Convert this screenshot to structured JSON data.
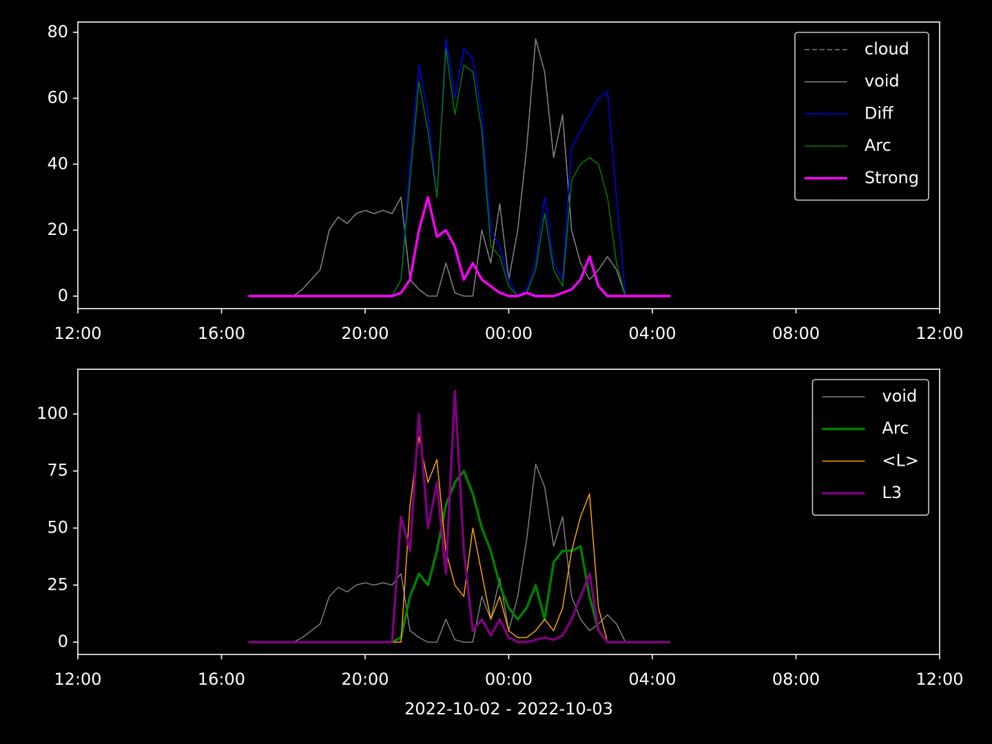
{
  "chart_data": [
    {
      "type": "line",
      "x": [
        16.75,
        17,
        17.25,
        17.5,
        17.75,
        18,
        18.25,
        18.5,
        18.75,
        19,
        19.25,
        19.5,
        19.75,
        20,
        20.25,
        20.5,
        20.75,
        21,
        21.25,
        21.5,
        21.75,
        22,
        22.25,
        22.5,
        22.75,
        23,
        23.25,
        23.5,
        23.75,
        24,
        24.25,
        24.5,
        24.75,
        25,
        25.25,
        25.5,
        25.75,
        26,
        26.25,
        26.5,
        26.75,
        27,
        27.25,
        27.5,
        27.75,
        28,
        28.25,
        28.5
      ],
      "xlim": [
        12,
        36
      ],
      "xticks": [
        {
          "value": 12,
          "label": "12:00"
        },
        {
          "value": 16,
          "label": "16:00"
        },
        {
          "value": 20,
          "label": "20:00"
        },
        {
          "value": 24,
          "label": "00:00"
        },
        {
          "value": 28,
          "label": "04:00"
        },
        {
          "value": 32,
          "label": "08:00"
        },
        {
          "value": 36,
          "label": "12:00"
        }
      ],
      "ylim": [
        -3.8,
        83.1
      ],
      "yticks": [
        0,
        20,
        40,
        60,
        80
      ],
      "legend": "upper right",
      "series": [
        {
          "name": "cloud",
          "color": "#808080",
          "linewidth": 1.5,
          "dash": "dashed",
          "values": [
            0,
            0,
            0,
            0,
            0,
            0,
            2,
            5,
            8,
            20,
            24,
            22,
            25,
            26,
            25,
            26,
            25,
            30,
            5,
            2,
            0,
            0,
            10,
            1,
            0,
            0,
            20,
            10,
            28,
            5,
            20,
            45,
            78,
            68,
            42,
            55,
            20,
            10,
            5,
            8,
            12,
            8,
            0,
            0,
            0,
            0,
            0,
            0
          ]
        },
        {
          "name": "void",
          "color": "#808080",
          "linewidth": 1.5,
          "values": [
            0,
            0,
            0,
            0,
            0,
            0,
            2,
            5,
            8,
            20,
            24,
            22,
            25,
            26,
            25,
            26,
            25,
            30,
            5,
            2,
            0,
            0,
            10,
            1,
            0,
            0,
            20,
            10,
            28,
            5,
            20,
            45,
            78,
            68,
            42,
            55,
            20,
            10,
            5,
            8,
            12,
            8,
            0,
            0,
            0,
            0,
            0,
            0
          ]
        },
        {
          "name": "Diff",
          "color": "#0000ff",
          "linewidth": 1.5,
          "values": [
            0,
            0,
            0,
            0,
            0,
            0,
            0,
            0,
            0,
            0,
            0,
            0,
            0,
            0,
            0,
            0,
            0,
            5,
            40,
            70,
            55,
            30,
            78,
            60,
            75,
            72,
            55,
            20,
            15,
            5,
            0,
            2,
            10,
            30,
            10,
            5,
            45,
            50,
            55,
            60,
            62,
            30,
            0,
            0,
            0,
            0,
            0,
            0
          ]
        },
        {
          "name": "Arc",
          "color": "#008000",
          "linewidth": 1.5,
          "values": [
            0,
            0,
            0,
            0,
            0,
            0,
            0,
            0,
            0,
            0,
            0,
            0,
            0,
            0,
            0,
            0,
            0,
            5,
            35,
            65,
            50,
            30,
            75,
            55,
            70,
            68,
            50,
            15,
            12,
            3,
            0,
            1,
            8,
            25,
            8,
            3,
            35,
            40,
            42,
            40,
            30,
            10,
            0,
            0,
            0,
            0,
            0,
            0
          ]
        },
        {
          "name": "Strong",
          "color": "#ff00ff",
          "linewidth": 3.5,
          "values": [
            0,
            0,
            0,
            0,
            0,
            0,
            0,
            0,
            0,
            0,
            0,
            0,
            0,
            0,
            0,
            0,
            0,
            1,
            5,
            20,
            30,
            18,
            20,
            15,
            5,
            10,
            5,
            3,
            1,
            0,
            0,
            1,
            0,
            0,
            0,
            1,
            2,
            5,
            12,
            3,
            0,
            0,
            0,
            0,
            0,
            0,
            0,
            0
          ]
        }
      ]
    },
    {
      "type": "line",
      "x": [
        16.75,
        17,
        17.25,
        17.5,
        17.75,
        18,
        18.25,
        18.5,
        18.75,
        19,
        19.25,
        19.5,
        19.75,
        20,
        20.25,
        20.5,
        20.75,
        21,
        21.25,
        21.5,
        21.75,
        22,
        22.25,
        22.5,
        22.75,
        23,
        23.25,
        23.5,
        23.75,
        24,
        24.25,
        24.5,
        24.75,
        25,
        25.25,
        25.5,
        25.75,
        26,
        26.25,
        26.5,
        26.75,
        27,
        27.25,
        27.5,
        27.75,
        28,
        28.25,
        28.5
      ],
      "xlim": [
        12,
        36
      ],
      "xticks": [
        {
          "value": 12,
          "label": "12:00"
        },
        {
          "value": 16,
          "label": "16:00"
        },
        {
          "value": 20,
          "label": "20:00"
        },
        {
          "value": 24,
          "label": "00:00"
        },
        {
          "value": 28,
          "label": "04:00"
        },
        {
          "value": 32,
          "label": "08:00"
        },
        {
          "value": 36,
          "label": "12:00"
        }
      ],
      "xlabel": "2022-10-02 - 2022-10-03",
      "ylim": [
        -5.4,
        119.6
      ],
      "yticks": [
        0,
        25,
        50,
        75,
        100
      ],
      "legend": "upper right",
      "series": [
        {
          "name": "void",
          "color": "#808080",
          "linewidth": 1.5,
          "values": [
            0,
            0,
            0,
            0,
            0,
            0,
            2,
            5,
            8,
            20,
            24,
            22,
            25,
            26,
            25,
            26,
            25,
            30,
            5,
            2,
            0,
            0,
            10,
            1,
            0,
            0,
            20,
            10,
            28,
            5,
            20,
            45,
            78,
            68,
            42,
            55,
            20,
            10,
            5,
            8,
            12,
            8,
            0,
            0,
            0,
            0,
            0,
            0
          ]
        },
        {
          "name": "Arc",
          "color": "#008000",
          "linewidth": 3.5,
          "values": [
            0,
            0,
            0,
            0,
            0,
            0,
            0,
            0,
            0,
            0,
            0,
            0,
            0,
            0,
            0,
            0,
            0,
            2,
            20,
            30,
            25,
            40,
            60,
            70,
            75,
            65,
            50,
            40,
            25,
            15,
            10,
            15,
            25,
            10,
            35,
            40,
            40,
            42,
            20,
            5,
            0,
            0,
            0,
            0,
            0,
            0,
            0,
            0
          ]
        },
        {
          "name": "<L>",
          "color": "#ffa500",
          "linewidth": 1.5,
          "values": [
            0,
            0,
            0,
            0,
            0,
            0,
            0,
            0,
            0,
            0,
            0,
            0,
            0,
            0,
            0,
            0,
            0,
            0,
            60,
            90,
            70,
            80,
            40,
            25,
            20,
            50,
            30,
            10,
            20,
            5,
            2,
            2,
            5,
            10,
            5,
            15,
            40,
            55,
            65,
            15,
            0,
            0,
            0,
            0,
            0,
            0,
            0,
            0
          ]
        },
        {
          "name": "L3",
          "color": "#800080",
          "linewidth": 3.5,
          "values": [
            0,
            0,
            0,
            0,
            0,
            0,
            0,
            0,
            0,
            0,
            0,
            0,
            0,
            0,
            0,
            0,
            0,
            55,
            40,
            100,
            50,
            70,
            30,
            110,
            40,
            5,
            10,
            3,
            10,
            2,
            0,
            0,
            1,
            2,
            1,
            3,
            10,
            20,
            30,
            5,
            0,
            0,
            0,
            0,
            0,
            0,
            0,
            0
          ]
        }
      ]
    }
  ]
}
